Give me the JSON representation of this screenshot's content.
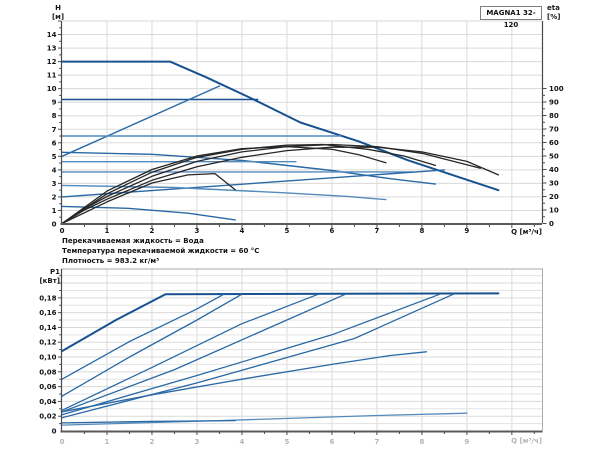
{
  "title_box": "MAGNA1 32-120",
  "conditions": [
    "Перекачиваемая жидкость = Вода",
    "Температура перекачиваемой жидкости = 60 °C",
    "Плотность = 983.2 кг/м³"
  ],
  "colors": {
    "dark": "#17518f",
    "mid": "#2a69a5",
    "light": "#548bbd",
    "black": "#262626",
    "grid": "#dadada",
    "grid_minor": "#e3e3e3",
    "frame": "#aaaaaa",
    "axis": "#4a4a4a",
    "axis_heavy": "#5a5a5a",
    "label": "#111318",
    "faint_label": "#b5b5b5"
  },
  "chart_data": [
    {
      "type": "line",
      "id": "hq-eta-chart",
      "title": "MAGNA1 32-120",
      "xlabel": "Q [м³/ч]",
      "ylabel_left": [
        "H",
        "[м]"
      ],
      "ylabel_right": [
        "eta",
        "[%]"
      ],
      "xlim": [
        0,
        10.67
      ],
      "ylim_left": [
        0,
        15
      ],
      "ylim_right": [
        0,
        150
      ],
      "grid": "on",
      "x_ticks": [
        [
          0,
          "0"
        ],
        [
          1,
          "1"
        ],
        [
          2,
          "2"
        ],
        [
          3,
          "3"
        ],
        [
          4,
          "4"
        ],
        [
          5,
          "5"
        ],
        [
          6,
          "6"
        ],
        [
          7,
          "7"
        ],
        [
          8,
          "8"
        ],
        [
          9,
          "9"
        ]
      ],
      "left_ticks": [
        [
          0,
          "0"
        ],
        [
          1,
          "1"
        ],
        [
          2,
          "2"
        ],
        [
          3,
          "3"
        ],
        [
          4,
          "4"
        ],
        [
          5,
          "5"
        ],
        [
          6,
          "6"
        ],
        [
          7,
          "7"
        ],
        [
          8,
          "8"
        ],
        [
          9,
          "9"
        ],
        [
          10,
          "10"
        ],
        [
          11,
          "11"
        ],
        [
          12,
          "12"
        ],
        [
          13,
          "13"
        ],
        [
          14,
          "14"
        ]
      ],
      "right_ticks": [
        [
          0,
          "0"
        ],
        [
          10,
          "10"
        ],
        [
          20,
          "20"
        ],
        [
          30,
          "30"
        ],
        [
          40,
          "40"
        ],
        [
          50,
          "50"
        ],
        [
          60,
          "60"
        ],
        [
          70,
          "70"
        ],
        [
          80,
          "80"
        ],
        [
          90,
          "90"
        ],
        [
          100,
          "100"
        ]
      ],
      "series": [
        {
          "name": "max-speed-curve",
          "axis": "left",
          "style": "dark",
          "w": 2,
          "points": [
            [
              0,
              12
            ],
            [
              2.4,
              12
            ],
            [
              3.2,
              10.85
            ],
            [
              4.2,
              9.3
            ],
            [
              5.3,
              7.5
            ],
            [
              6.6,
              6.1
            ],
            [
              7.7,
              4.7
            ],
            [
              8.7,
              3.6
            ],
            [
              9.7,
              2.5
            ]
          ]
        },
        {
          "name": "const-pressure-9.2",
          "axis": "left",
          "style": "dark",
          "w": 1.4,
          "points": [
            [
              0,
              9.2
            ],
            [
              4.35,
              9.2
            ]
          ]
        },
        {
          "name": "prop-pressure-high",
          "axis": "left",
          "style": "mid",
          "w": 1.4,
          "points": [
            [
              0,
              5.0
            ],
            [
              3.5,
              10.2
            ]
          ]
        },
        {
          "name": "const-pressure-6.5",
          "axis": "left",
          "style": "light",
          "w": 1.4,
          "points": [
            [
              0,
              6.5
            ],
            [
              6.2,
              6.5
            ]
          ]
        },
        {
          "name": "speed-curve-mid",
          "axis": "left",
          "style": "mid",
          "w": 1.4,
          "points": [
            [
              0,
              5.3
            ],
            [
              2,
              5.15
            ],
            [
              4,
              4.7
            ],
            [
              6,
              3.95
            ],
            [
              7.3,
              3.35
            ],
            [
              8.3,
              2.95
            ]
          ]
        },
        {
          "name": "const-pressure-4.6",
          "axis": "left",
          "style": "light",
          "w": 1.4,
          "points": [
            [
              0,
              4.6
            ],
            [
              5.2,
              4.6
            ]
          ]
        },
        {
          "name": "const-pressure-3.9",
          "axis": "left",
          "style": "light",
          "w": 1.4,
          "points": [
            [
              0,
              3.85
            ],
            [
              7.8,
              3.85
            ]
          ]
        },
        {
          "name": "prop-pressure-low",
          "axis": "left",
          "style": "mid",
          "w": 1.4,
          "points": [
            [
              0,
              2.0
            ],
            [
              8.5,
              4.0
            ]
          ]
        },
        {
          "name": "speed-curve-low",
          "axis": "left",
          "style": "light",
          "w": 1.4,
          "points": [
            [
              0,
              2.85
            ],
            [
              2.5,
              2.7
            ],
            [
              5,
              2.3
            ],
            [
              6.3,
              2.05
            ],
            [
              7.2,
              1.8
            ]
          ]
        },
        {
          "name": "min-speed-curve",
          "axis": "left",
          "style": "mid",
          "w": 1.4,
          "points": [
            [
              0,
              1.3
            ],
            [
              1.5,
              1.15
            ],
            [
              2.8,
              0.8
            ],
            [
              3.85,
              0.3
            ]
          ]
        },
        {
          "name": "eta-curve-max",
          "axis": "right",
          "style": "black",
          "w": 1.3,
          "points": [
            [
              0,
              0
            ],
            [
              0.5,
              10
            ],
            [
              1,
              18
            ],
            [
              2,
              32
            ],
            [
              3,
              42
            ],
            [
              4,
              49
            ],
            [
              5,
              54
            ],
            [
              6,
              56.5
            ],
            [
              7,
              56.5
            ],
            [
              8,
              53
            ],
            [
              9,
              46
            ],
            [
              9.7,
              36
            ]
          ]
        },
        {
          "name": "eta-curve-2",
          "axis": "right",
          "style": "black",
          "w": 1.3,
          "points": [
            [
              0,
              0
            ],
            [
              0.5,
              11
            ],
            [
              1,
              20
            ],
            [
              2,
              35
            ],
            [
              3,
              46
            ],
            [
              4,
              53
            ],
            [
              5,
              57
            ],
            [
              6,
              58.5
            ],
            [
              7,
              57
            ],
            [
              8,
              52
            ],
            [
              9.3,
              41
            ]
          ]
        },
        {
          "name": "eta-curve-3",
          "axis": "right",
          "style": "black",
          "w": 1.3,
          "points": [
            [
              0,
              0
            ],
            [
              1,
              22
            ],
            [
              2,
              38
            ],
            [
              3,
              49
            ],
            [
              4,
              55
            ],
            [
              5,
              58
            ],
            [
              5.8,
              58.5
            ],
            [
              6.8,
              55
            ],
            [
              7.6,
              50
            ],
            [
              8.3,
              43
            ]
          ]
        },
        {
          "name": "eta-curve-4",
          "axis": "right",
          "style": "black",
          "w": 1.3,
          "points": [
            [
              0,
              0
            ],
            [
              1,
              24
            ],
            [
              2,
              40
            ],
            [
              3,
              50
            ],
            [
              4,
              55.5
            ],
            [
              5,
              57
            ],
            [
              6,
              55
            ],
            [
              6.6,
              51
            ],
            [
              7.2,
              45
            ]
          ]
        },
        {
          "name": "eta-curve-min",
          "axis": "right",
          "style": "black",
          "w": 1.3,
          "points": [
            [
              0,
              0
            ],
            [
              1,
              16
            ],
            [
              2,
              30
            ],
            [
              2.8,
              36
            ],
            [
              3.4,
              37
            ],
            [
              3.85,
              25
            ]
          ]
        }
      ]
    },
    {
      "type": "line",
      "id": "p1-chart",
      "xlabel": "Q [м³/ч]",
      "ylabel_left": [
        "P1",
        "[кВт]"
      ],
      "xlim": [
        0,
        10.67
      ],
      "ylim_left": [
        0,
        0.219
      ],
      "grid": "on",
      "x_ticks": [
        [
          0,
          "0"
        ],
        [
          1,
          "1"
        ],
        [
          2,
          "2"
        ],
        [
          3,
          "3"
        ],
        [
          4,
          "4"
        ],
        [
          5,
          "5"
        ],
        [
          6,
          "6"
        ],
        [
          7,
          "7"
        ],
        [
          8,
          "8"
        ],
        [
          9,
          "9"
        ]
      ],
      "left_ticks": [
        [
          0,
          "0"
        ],
        [
          0.02,
          "0,02"
        ],
        [
          0.04,
          "0,04"
        ],
        [
          0.06,
          "0,06"
        ],
        [
          0.08,
          "0,08"
        ],
        [
          0.1,
          "0,10"
        ],
        [
          0.12,
          "0,12"
        ],
        [
          0.14,
          "0,14"
        ],
        [
          0.16,
          "0,16"
        ],
        [
          0.18,
          "0,18"
        ]
      ],
      "series": [
        {
          "name": "p1-max",
          "axis": "left",
          "style": "dark",
          "w": 2,
          "points": [
            [
              0,
              0.108
            ],
            [
              1.2,
              0.15
            ],
            [
              2.3,
              0.185
            ],
            [
              9.7,
              0.186
            ]
          ]
        },
        {
          "name": "p1-curve-2",
          "axis": "left",
          "style": "mid",
          "w": 1.3,
          "points": [
            [
              0,
              0.07
            ],
            [
              1.5,
              0.121
            ],
            [
              3.0,
              0.165
            ],
            [
              3.6,
              0.185
            ]
          ]
        },
        {
          "name": "p1-curve-3",
          "axis": "left",
          "style": "mid",
          "w": 1.3,
          "points": [
            [
              0,
              0.047
            ],
            [
              1.5,
              0.1
            ],
            [
              3.0,
              0.15
            ],
            [
              4.0,
              0.185
            ]
          ]
        },
        {
          "name": "p1-curve-4",
          "axis": "left",
          "style": "mid",
          "w": 1.3,
          "points": [
            [
              0,
              0.028
            ],
            [
              2.0,
              0.086
            ],
            [
              4.0,
              0.145
            ],
            [
              5.7,
              0.185
            ]
          ]
        },
        {
          "name": "p1-curve-5",
          "axis": "left",
          "style": "mid",
          "w": 1.3,
          "points": [
            [
              0,
              0.026
            ],
            [
              2.5,
              0.083
            ],
            [
              5.0,
              0.15
            ],
            [
              6.3,
              0.185
            ]
          ]
        },
        {
          "name": "p1-curve-6",
          "axis": "left",
          "style": "mid",
          "w": 1.3,
          "points": [
            [
              0,
              0.022
            ],
            [
              3.0,
              0.075
            ],
            [
              6.0,
              0.13
            ],
            [
              8.4,
              0.185
            ]
          ]
        },
        {
          "name": "p1-curve-7",
          "axis": "left",
          "style": "mid",
          "w": 1.3,
          "points": [
            [
              0,
              0.018
            ],
            [
              3.0,
              0.065
            ],
            [
              6.5,
              0.125
            ],
            [
              8.7,
              0.185
            ]
          ]
        },
        {
          "name": "p1-speed-mid",
          "axis": "left",
          "style": "mid",
          "w": 1.3,
          "points": [
            [
              0,
              0.026
            ],
            [
              2,
              0.049
            ],
            [
              4,
              0.07
            ],
            [
              6,
              0.09
            ],
            [
              7.3,
              0.102
            ],
            [
              8.1,
              0.107
            ]
          ]
        },
        {
          "name": "p1-low-rise",
          "axis": "left",
          "style": "light",
          "w": 1.3,
          "points": [
            [
              0,
              0.008
            ],
            [
              3.5,
              0.014
            ],
            [
              7,
              0.021
            ],
            [
              9,
              0.024
            ]
          ]
        },
        {
          "name": "p1-min",
          "axis": "left",
          "style": "mid",
          "w": 1.3,
          "points": [
            [
              0,
              0.011
            ],
            [
              2,
              0.013
            ],
            [
              3.85,
              0.014
            ]
          ]
        }
      ]
    }
  ]
}
